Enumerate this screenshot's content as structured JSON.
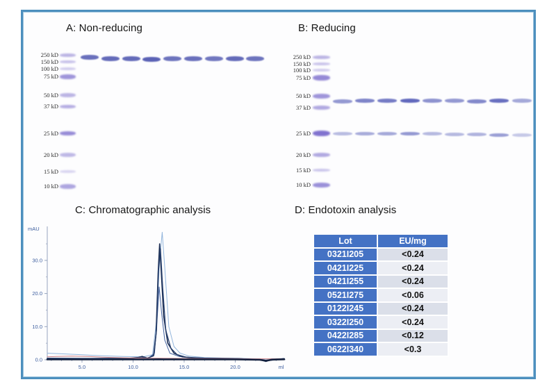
{
  "figure": {
    "border_color": "#4d8fbe"
  },
  "panels": {
    "a": {
      "title": "A: Non-reducing",
      "markers": [
        "250 kD",
        "150 kD",
        "100 kD",
        "75 kD",
        "50 kD",
        "37 kD",
        "25 kD",
        "20 kD",
        "15 kD",
        "10 kD"
      ],
      "sample_lanes": 9,
      "band_color": "#4a52ae"
    },
    "b": {
      "title": "B: Reducing",
      "markers": [
        "250 kD",
        "150 kD",
        "100 kD",
        "75 kD",
        "50 kD",
        "37 kD",
        "25 kD",
        "20 kD",
        "15 kD",
        "10 kD"
      ],
      "sample_lanes": 9,
      "band_color": "#555db8"
    },
    "c": {
      "title": "C: Chromatographic analysis"
    },
    "d": {
      "title": "D: Endotoxin analysis",
      "table": {
        "headers": [
          "Lot",
          "EU/mg"
        ],
        "rows": [
          [
            "0321I205",
            "<0.24"
          ],
          [
            "0421I225",
            "<0.24"
          ],
          [
            "0421I255",
            "<0.24"
          ],
          [
            "0521I275",
            "<0.06"
          ],
          [
            "0122I245",
            "<0.24"
          ],
          [
            "0322I250",
            "<0.24"
          ],
          [
            "0422I285",
            "<0.12"
          ],
          [
            "0622I340",
            "<0.3"
          ]
        ],
        "header_bg": "#4472C4",
        "lot_bg": "#4472C4",
        "row_bg_alt": [
          "#dbdfe9",
          "#eceef4"
        ]
      }
    }
  },
  "chart_data": {
    "type": "line",
    "title": "C: Chromatographic analysis",
    "xlabel": "ml",
    "ylabel": "mAU",
    "xlim": [
      1.6,
      24.9
    ],
    "ylim": [
      -2,
      42
    ],
    "xticks": [
      "5.0",
      "10.0",
      "15.0",
      "20.0"
    ],
    "xtick_values": [
      5,
      10,
      15,
      20
    ],
    "yticks": [
      "0.0",
      "10.0",
      "20.0",
      "30.0"
    ],
    "ytick_values": [
      0,
      10,
      20,
      30
    ],
    "grid": false,
    "legend": "none",
    "axis_color": "#96a3bd",
    "label_color": "#3c5d9e",
    "series": [
      {
        "name": "overlay-light-blue",
        "color": "#92b5dc",
        "width": 1,
        "x": [
          1.6,
          3,
          5,
          7,
          9,
          11,
          11.9,
          12.3,
          12.6,
          12.85,
          13.1,
          13.5,
          14,
          14.6,
          15.5,
          17,
          19,
          21,
          22.5,
          23.2,
          24,
          24.8
        ],
        "y": [
          2.0,
          1.8,
          1.5,
          1.2,
          1.0,
          0.9,
          1.5,
          12,
          30,
          38.5,
          28,
          10,
          4,
          2,
          1.1,
          0.7,
          0.5,
          0.4,
          0.2,
          -0.1,
          0.3,
          0.4
        ]
      },
      {
        "name": "overlay-mid-blue",
        "color": "#44639f",
        "width": 1,
        "x": [
          1.6,
          5,
          10,
          11.5,
          12.1,
          12.35,
          12.55,
          12.8,
          13.1,
          13.6,
          14.5,
          16,
          20,
          22.6,
          23.2,
          24.8
        ],
        "y": [
          0.5,
          0.45,
          0.5,
          0.5,
          2,
          12,
          22,
          14,
          6,
          2,
          1,
          0.5,
          0.4,
          0.1,
          -0.3,
          0.3
        ]
      },
      {
        "name": "overlay-navy-1",
        "color": "#1d2f55",
        "width": 1.6,
        "x": [
          1.6,
          5,
          9.5,
          10.5,
          10.9,
          11.4,
          12.0,
          12.25,
          12.45,
          12.6,
          12.75,
          13.0,
          13.4,
          14.0,
          14.8,
          16,
          18,
          20,
          22.4,
          23.0,
          23.6,
          24.8
        ],
        "y": [
          0.35,
          0.35,
          0.4,
          0.7,
          1.0,
          0.5,
          1.2,
          8,
          26,
          35,
          27,
          13,
          5,
          2,
          0.9,
          0.5,
          0.4,
          0.35,
          0.05,
          -0.5,
          0.1,
          0.3
        ]
      },
      {
        "name": "overlay-navy-2",
        "color": "#27406e",
        "width": 1.2,
        "x": [
          1.6,
          6,
          10,
          10.8,
          11.5,
          12.05,
          12.3,
          12.5,
          12.68,
          12.9,
          13.2,
          13.7,
          14.3,
          15.2,
          17,
          20,
          22.5,
          23.1,
          24,
          24.8
        ],
        "y": [
          0.45,
          0.4,
          0.45,
          0.8,
          0.45,
          1.5,
          9,
          27,
          33.5,
          22,
          9,
          3.5,
          1.6,
          0.8,
          0.5,
          0.4,
          0.1,
          -0.35,
          0.2,
          0.35
        ]
      },
      {
        "name": "overlay-red",
        "color": "#c97e85",
        "width": 1,
        "x": [
          1.6,
          2.5,
          4,
          5.5,
          7,
          9,
          11,
          13,
          15,
          17,
          19,
          21,
          23,
          24.8
        ],
        "y": [
          0.9,
          1.0,
          1.1,
          1.0,
          0.8,
          0.6,
          0.5,
          0.45,
          0.4,
          0.38,
          0.35,
          0.3,
          0.3,
          0.3
        ]
      },
      {
        "name": "baseline-dark",
        "color": "#14213f",
        "width": 2.6,
        "x": [
          1.6,
          5,
          10,
          12,
          12.5,
          13,
          15,
          20,
          22.4,
          23,
          23.6,
          24.8
        ],
        "y": [
          0.1,
          0.1,
          0.12,
          0.12,
          0.15,
          0.12,
          0.1,
          0.1,
          0.0,
          -0.3,
          0.05,
          0.15
        ]
      }
    ]
  }
}
